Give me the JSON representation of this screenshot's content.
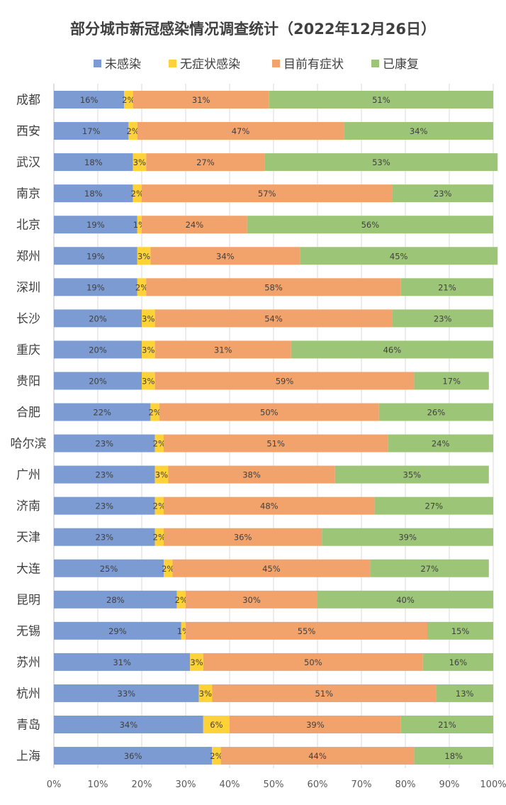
{
  "chart_data": {
    "type": "bar",
    "orientation": "horizontal",
    "stacked": true,
    "title": "部分城市新冠感染情况调查统计（2022年12月26日）",
    "xlabel": "",
    "ylabel": "",
    "xlim": [
      0,
      100
    ],
    "grid": true,
    "legend_position": "top",
    "x_tick_labels": [
      "0%",
      "10%",
      "20%",
      "30%",
      "40%",
      "50%",
      "60%",
      "70%",
      "80%",
      "90%",
      "100%"
    ],
    "categories": [
      "成都",
      "西安",
      "武汉",
      "南京",
      "北京",
      "郑州",
      "深圳",
      "长沙",
      "重庆",
      "贵阳",
      "合肥",
      "哈尔滨",
      "广州",
      "济南",
      "天津",
      "大连",
      "昆明",
      "无锡",
      "苏州",
      "杭州",
      "青岛",
      "上海"
    ],
    "series": [
      {
        "name": "未感染",
        "color": "#7b9bd2",
        "values": [
          16,
          17,
          18,
          18,
          19,
          19,
          19,
          20,
          20,
          20,
          22,
          23,
          23,
          23,
          23,
          25,
          28,
          29,
          31,
          33,
          34,
          36
        ]
      },
      {
        "name": "无症状感染",
        "color": "#ffd23a",
        "values": [
          2,
          2,
          3,
          2,
          1,
          3,
          2,
          3,
          3,
          3,
          2,
          2,
          3,
          2,
          2,
          2,
          2,
          1,
          3,
          3,
          6,
          2
        ]
      },
      {
        "name": "目前有症状",
        "color": "#f2a36c",
        "values": [
          31,
          47,
          27,
          57,
          24,
          34,
          58,
          54,
          31,
          59,
          50,
          51,
          38,
          48,
          36,
          45,
          30,
          55,
          50,
          51,
          39,
          44
        ]
      },
      {
        "name": "已康复",
        "color": "#9cc578",
        "values": [
          51,
          34,
          53,
          23,
          56,
          45,
          21,
          23,
          46,
          17,
          26,
          24,
          35,
          27,
          39,
          27,
          40,
          15,
          16,
          13,
          21,
          18
        ]
      }
    ]
  }
}
